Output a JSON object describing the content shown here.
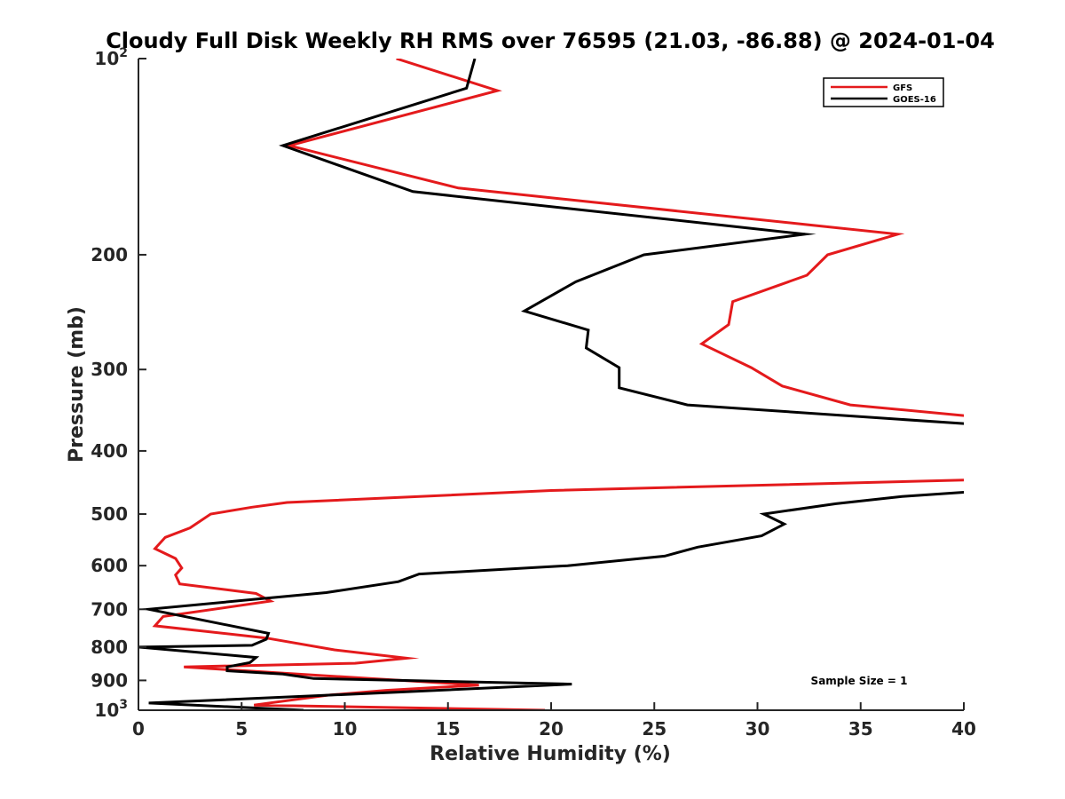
{
  "chart_data": {
    "type": "line",
    "title": "Cloudy Full Disk Weekly RH RMS over 76595 (21.03, -86.88) @ 2024-01-04",
    "xlabel": "Relative Humidity (%)",
    "ylabel": "Pressure (mb)",
    "xlim": [
      0,
      40
    ],
    "ylim": [
      100,
      1000
    ],
    "yscale": "log",
    "yreversed": false,
    "x_ticks": [
      "0",
      "5",
      "10",
      "15",
      "20",
      "25",
      "30",
      "35",
      "40"
    ],
    "y_ticks": [
      {
        "value": 100,
        "label": "10",
        "sup": "2"
      },
      {
        "value": 200,
        "label": "200",
        "sup": ""
      },
      {
        "value": 300,
        "label": "300",
        "sup": ""
      },
      {
        "value": 400,
        "label": "400",
        "sup": ""
      },
      {
        "value": 500,
        "label": "500",
        "sup": ""
      },
      {
        "value": 600,
        "label": "600",
        "sup": ""
      },
      {
        "value": 700,
        "label": "700",
        "sup": ""
      },
      {
        "value": 800,
        "label": "800",
        "sup": ""
      },
      {
        "value": 900,
        "label": "900",
        "sup": ""
      },
      {
        "value": 1000,
        "label": "10",
        "sup": "3"
      }
    ],
    "legend_position": "top-right",
    "annotation": "Sample Size = 1",
    "series": [
      {
        "name": "GFS",
        "color": "#e41a1c",
        "points": [
          [
            12.5,
            100
          ],
          [
            17.4,
            112
          ],
          [
            7.3,
            136
          ],
          [
            15.5,
            158
          ],
          [
            36.8,
            186
          ],
          [
            33.4,
            200
          ],
          [
            32.4,
            215
          ],
          [
            28.8,
            236
          ],
          [
            28.6,
            256
          ],
          [
            27.3,
            274
          ],
          [
            29.7,
            298
          ],
          [
            31.2,
            318
          ],
          [
            34.5,
            340
          ],
          [
            40.4,
            354
          ],
          [
            40.4,
            443
          ],
          [
            20.0,
            460
          ],
          [
            7.2,
            480
          ],
          [
            5.5,
            488
          ],
          [
            3.5,
            500
          ],
          [
            2.5,
            525
          ],
          [
            1.3,
            543
          ],
          [
            0.8,
            565
          ],
          [
            1.8,
            585
          ],
          [
            2.1,
            605
          ],
          [
            1.8,
            620
          ],
          [
            2.0,
            640
          ],
          [
            5.7,
            662
          ],
          [
            6.4,
            680
          ],
          [
            1.2,
            718
          ],
          [
            0.8,
            742
          ],
          [
            6.2,
            775
          ],
          [
            9.5,
            808
          ],
          [
            13.0,
            832
          ],
          [
            10.5,
            847
          ],
          [
            2.2,
            858
          ],
          [
            9.0,
            885
          ],
          [
            16.5,
            915
          ],
          [
            12.0,
            932
          ],
          [
            9.2,
            948
          ],
          [
            5.6,
            982
          ],
          [
            19.7,
            1000
          ]
        ]
      },
      {
        "name": "GOES-16",
        "color": "#000000",
        "points": [
          [
            16.3,
            100
          ],
          [
            15.9,
            111
          ],
          [
            7.0,
            136
          ],
          [
            13.3,
            160
          ],
          [
            32.3,
            186
          ],
          [
            24.5,
            200
          ],
          [
            21.2,
            220
          ],
          [
            18.7,
            244
          ],
          [
            21.8,
            261
          ],
          [
            21.7,
            278
          ],
          [
            23.3,
            298
          ],
          [
            23.3,
            320
          ],
          [
            26.6,
            340
          ],
          [
            40.4,
            364
          ],
          [
            40.4,
            462
          ],
          [
            37.0,
            470
          ],
          [
            33.8,
            482
          ],
          [
            30.3,
            500
          ],
          [
            31.3,
            518
          ],
          [
            30.2,
            540
          ],
          [
            27.1,
            562
          ],
          [
            25.5,
            580
          ],
          [
            20.8,
            600
          ],
          [
            13.6,
            618
          ],
          [
            12.6,
            635
          ],
          [
            9.1,
            660
          ],
          [
            0.5,
            700
          ],
          [
            6.3,
            762
          ],
          [
            6.2,
            778
          ],
          [
            5.5,
            795
          ],
          [
            0.0,
            800
          ],
          [
            5.7,
            830
          ],
          [
            5.4,
            845
          ],
          [
            4.3,
            858
          ],
          [
            4.3,
            870
          ],
          [
            7.0,
            880
          ],
          [
            8.5,
            894
          ],
          [
            21.0,
            912
          ],
          [
            12.6,
            938
          ],
          [
            0.5,
            975
          ],
          [
            8.0,
            1000
          ]
        ]
      }
    ]
  }
}
